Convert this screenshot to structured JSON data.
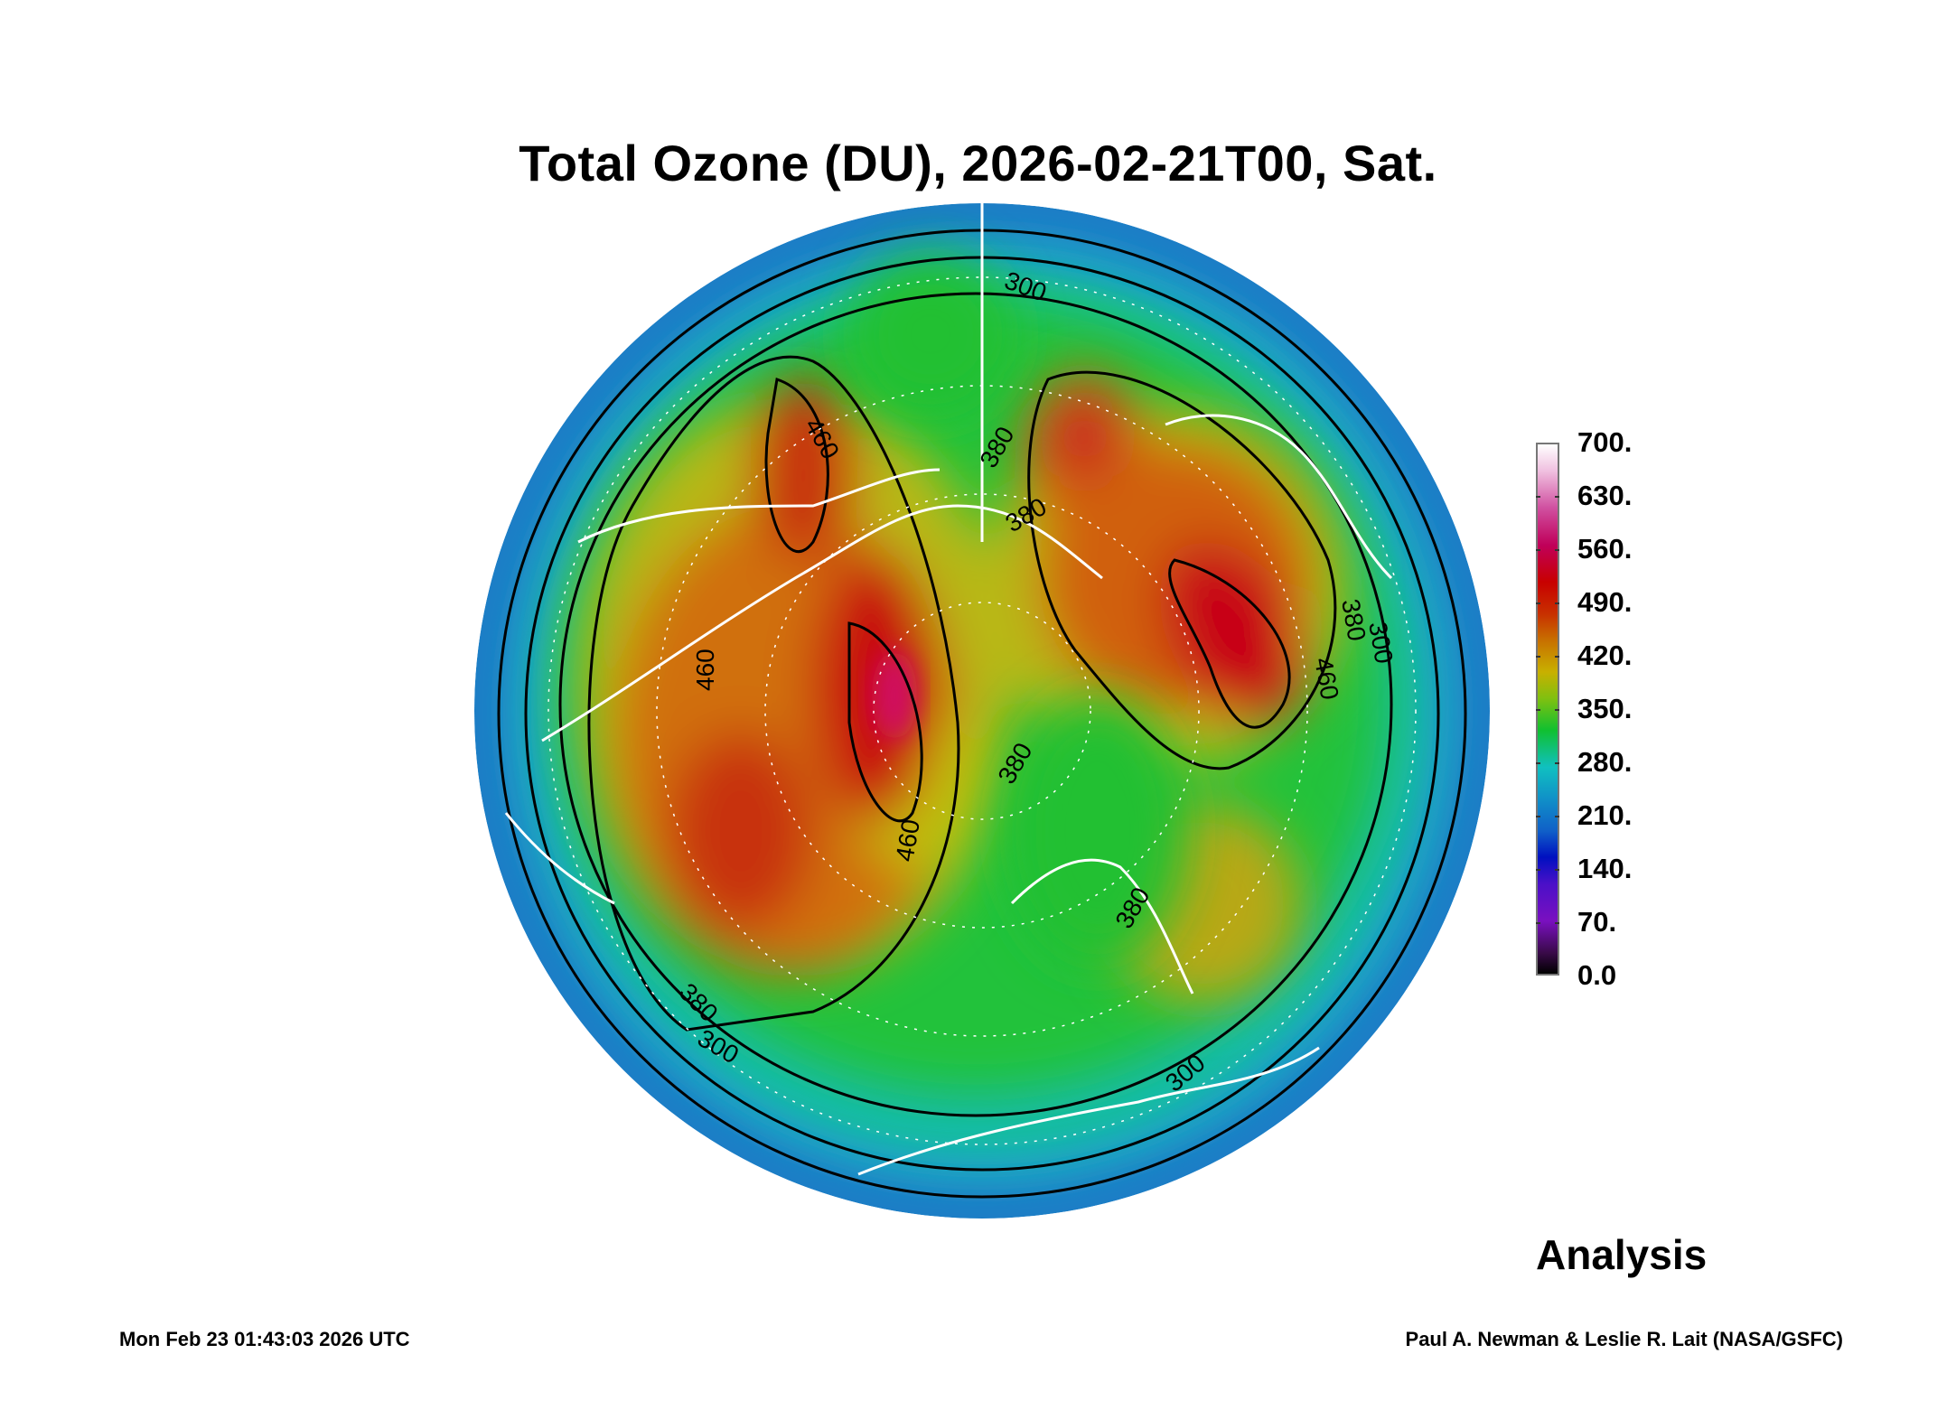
{
  "title": "Total Ozone (DU), 2026-02-21T00, Sat.",
  "analysis_label": "Analysis",
  "timestamp": "Mon Feb 23 01:43:03 2026 UTC",
  "credit": "Paul A. Newman & Leslie R. Lait (NASA/GSFC)",
  "colorbar": {
    "ticks": [
      "0.0",
      "70.",
      "140.",
      "210.",
      "280.",
      "350.",
      "420.",
      "490.",
      "560.",
      "630.",
      "700."
    ],
    "min": 0,
    "max": 700,
    "colors": {
      "low": "#000000",
      "violet": "#7a10c0",
      "blue": "#0010c0",
      "cyan": "#10c0c0",
      "green": "#10c030",
      "yellow": "#c8b000",
      "orange": "#c87000",
      "red": "#c80000",
      "magenta": "#c0005a",
      "high": "#ffffff"
    }
  },
  "contour_labels": [
    "300",
    "380",
    "460",
    "380",
    "380",
    "300",
    "380",
    "460",
    "380",
    "300",
    "460",
    "460",
    "380",
    "300"
  ],
  "chart_data": {
    "type": "heatmap",
    "title": "Total Ozone (DU), 2026-02-21T00, Sat.",
    "projection": "north polar orthographic",
    "units": "DU",
    "colorbar_range": [
      0,
      700
    ],
    "colorbar_ticks": [
      0,
      70,
      140,
      210,
      280,
      350,
      420,
      490,
      560,
      630,
      700
    ],
    "contour_levels": [
      300,
      380,
      460
    ]
  }
}
